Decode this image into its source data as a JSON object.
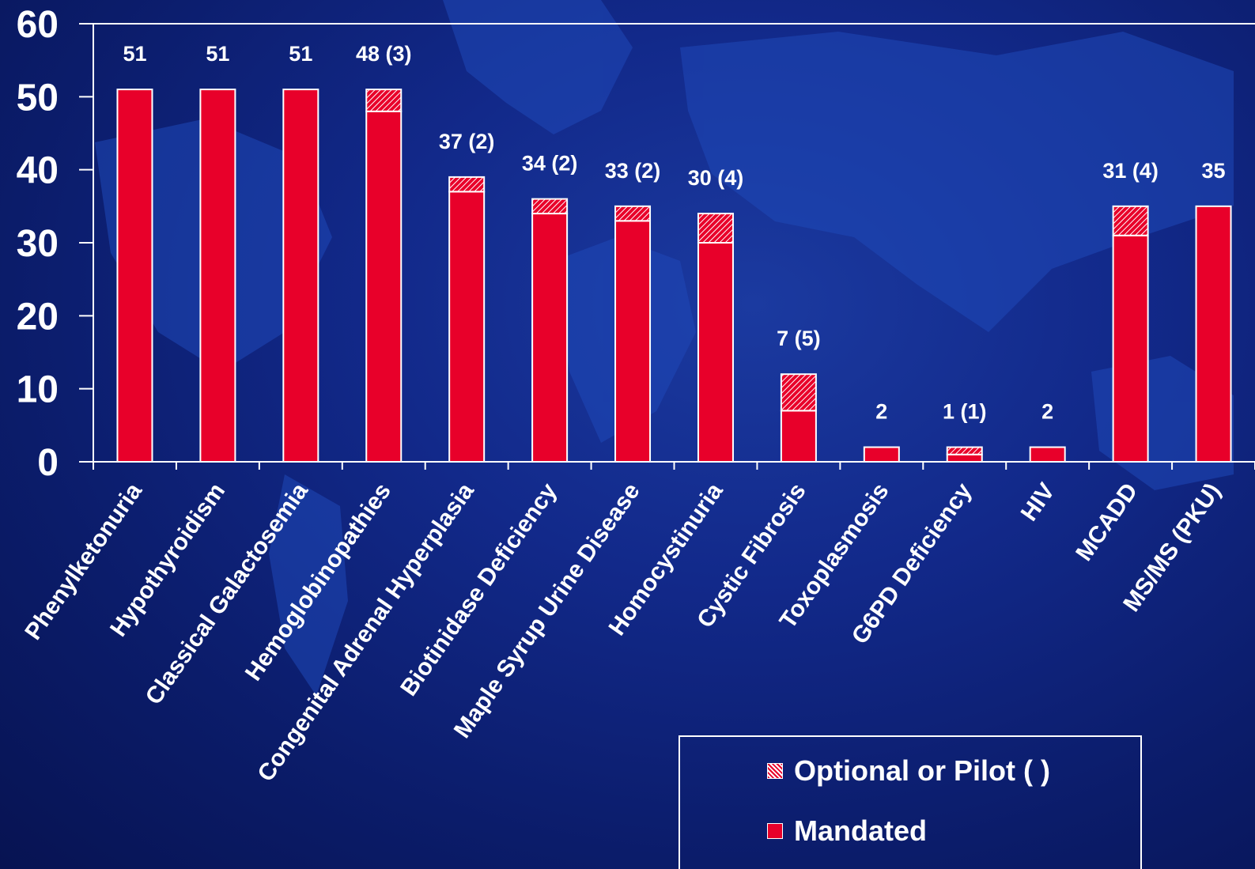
{
  "chart_data": {
    "type": "bar",
    "stacked": true,
    "title": "",
    "xlabel": "",
    "ylabel": "",
    "ylim": [
      0,
      60
    ],
    "yticks": [
      0,
      10,
      20,
      30,
      40,
      50,
      60
    ],
    "categories": [
      "Phenylketonuria",
      "Hypothyroidism",
      "Classical Galactosemia",
      "Hemoglobinopathies",
      "Congenital Adrenal Hyperplasia",
      "Biotinidase Deficiency",
      "Maple Syrup Urine Disease",
      "Homocystinuria",
      "Cystic Fibrosis",
      "Toxoplasmosis",
      "G6PD Deficiency",
      "HIV",
      "MCADD",
      "MS/MS (PKU)"
    ],
    "series": [
      {
        "name": "Mandated",
        "values": [
          51,
          51,
          51,
          48,
          37,
          34,
          33,
          30,
          7,
          2,
          1,
          2,
          31,
          35
        ]
      },
      {
        "name": "Optional or Pilot ( )",
        "values": [
          0,
          0,
          0,
          3,
          2,
          2,
          2,
          4,
          5,
          0,
          1,
          0,
          4,
          0
        ]
      }
    ],
    "data_labels": [
      "51",
      "51",
      "51",
      "48 (3)",
      "37 (2)",
      "34 (2)",
      "33 (2)",
      "30 (4)",
      "7 (5)",
      "2",
      "1 (1)",
      "2",
      "31 (4)",
      "35"
    ],
    "grid": false,
    "legend_position": "bottom-right",
    "colors": {
      "mandated": "#e8002a",
      "optional_hatch": "#ffffff",
      "axis": "#ffffff",
      "text": "#ffffff"
    }
  },
  "legend": {
    "optional_label": "Optional or Pilot ( )",
    "mandated_label": "Mandated"
  }
}
